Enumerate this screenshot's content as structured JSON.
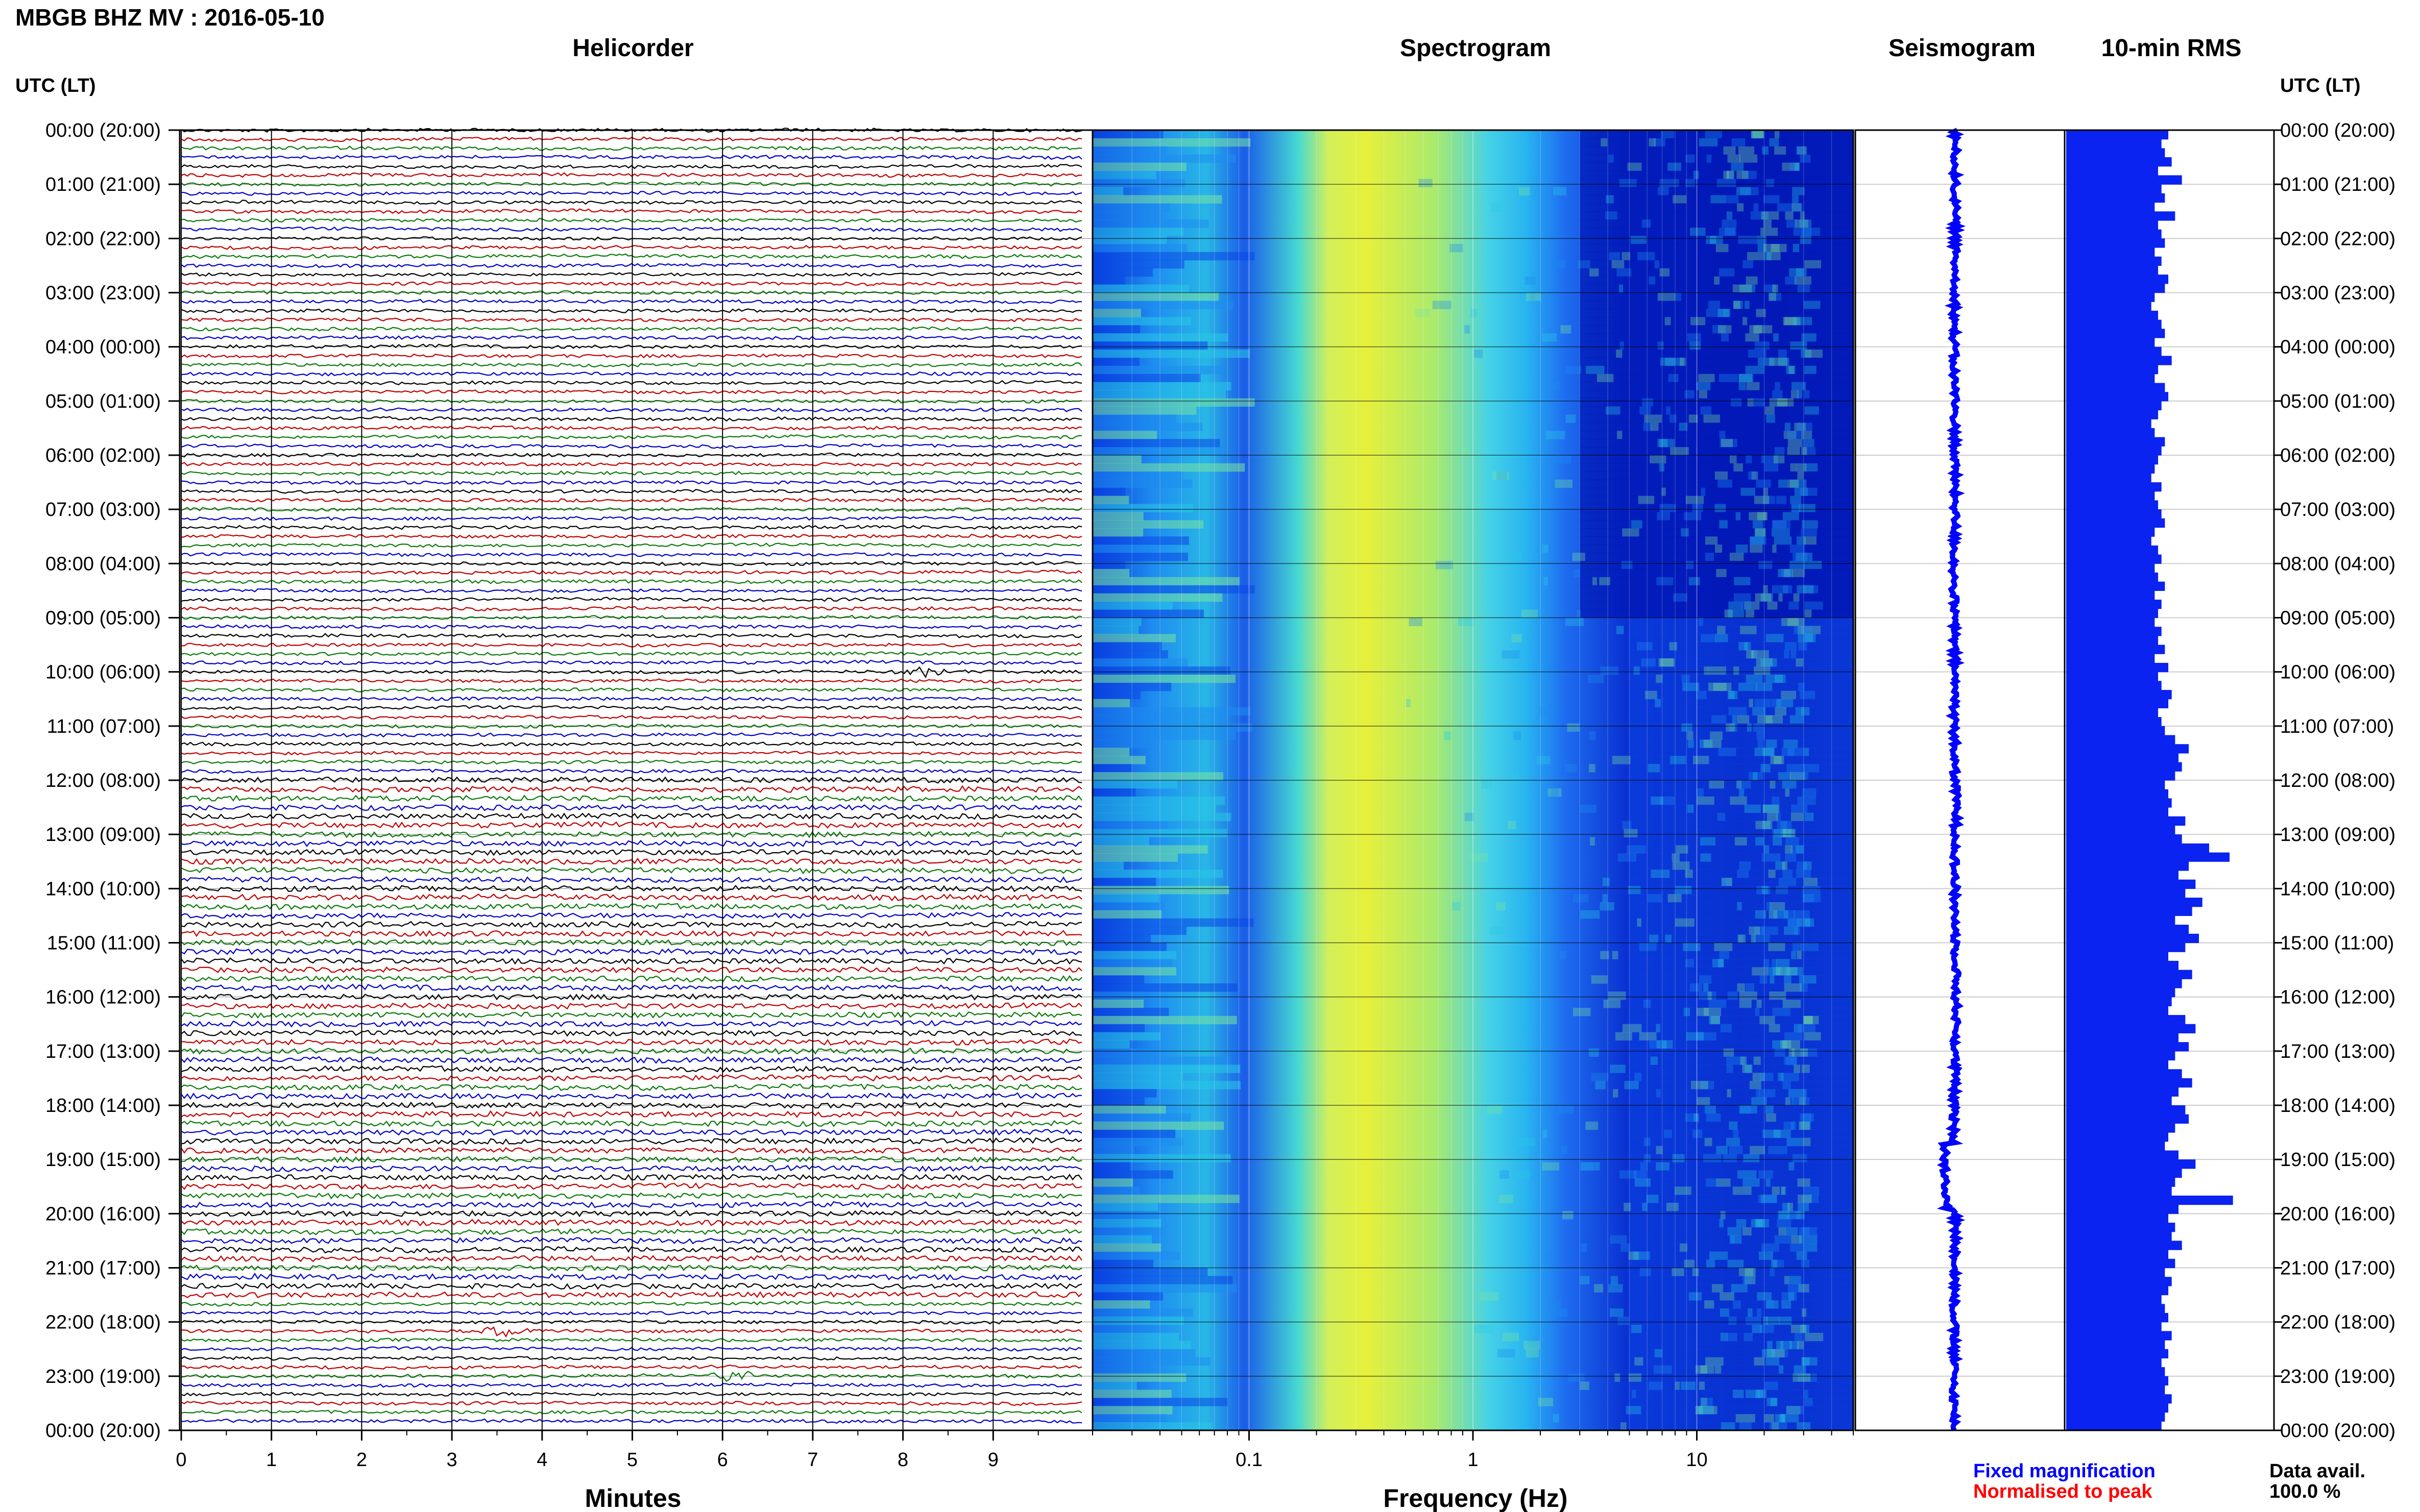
{
  "figure_title": "MBGB BHZ MV : 2016-05-10",
  "chart_data": [
    {
      "type": "line",
      "title": "Helicorder",
      "xlabel": "Minutes",
      "x_ticks": [
        "0",
        "1",
        "2",
        "3",
        "4",
        "5",
        "6",
        "7",
        "8",
        "9"
      ],
      "xlim": [
        0,
        10
      ],
      "lines_per_hour": 6,
      "trace_colors": [
        "#000000",
        "#c00000",
        "#0a7a0a",
        "#0000c8"
      ],
      "events": [
        {
          "time_label": "10:00 (06:00)",
          "trace_index": 60,
          "minute": 8.2,
          "color": "#c00000"
        },
        {
          "time_label": "22:00 (18:00)",
          "trace_index": 133,
          "minute": 3.6,
          "color": "#c00000"
        },
        {
          "time_label": "22:00 (18:00)",
          "trace_index": 138,
          "minute": 6.1,
          "color": "#000000"
        }
      ]
    },
    {
      "type": "heatmap",
      "title": "Spectrogram",
      "xlabel": "Frequency (Hz)",
      "x_scale": "log",
      "x_ticks": [
        "0.1",
        "1",
        "10"
      ],
      "xlim": [
        0.02,
        50
      ],
      "colormap": [
        "#0015b4",
        "#0a46e6",
        "#1e8cf0",
        "#28c8e6",
        "#78e6a0",
        "#d2f05a",
        "#f0f028"
      ]
    },
    {
      "type": "line",
      "title": "Seismogram",
      "color": "#0000ff"
    },
    {
      "type": "bar",
      "title": "10-min RMS",
      "color": "#0a23f0",
      "values": [
        3.0,
        2.8,
        2.9,
        3.1,
        2.7,
        3.4,
        2.8,
        2.9,
        2.6,
        3.2,
        2.7,
        2.8,
        2.9,
        2.6,
        2.8,
        2.7,
        3.0,
        2.9,
        2.6,
        2.5,
        2.7,
        2.8,
        2.9,
        2.6,
        2.8,
        3.1,
        2.7,
        2.6,
        2.9,
        3.0,
        2.8,
        2.7,
        2.5,
        2.6,
        2.9,
        2.8,
        2.7,
        2.6,
        2.5,
        2.8,
        2.6,
        2.7,
        2.8,
        2.9,
        2.6,
        2.5,
        2.7,
        2.8,
        2.6,
        2.7,
        2.9,
        2.6,
        2.8,
        2.7,
        2.6,
        2.8,
        2.7,
        2.9,
        2.6,
        3.0,
        2.7,
        2.8,
        3.1,
        3.0,
        2.7,
        2.8,
        2.9,
        3.2,
        3.6,
        3.3,
        3.4,
        3.2,
        2.9,
        3.0,
        3.1,
        3.0,
        3.5,
        3.2,
        3.4,
        4.2,
        4.8,
        3.6,
        3.3,
        3.8,
        3.5,
        4.0,
        3.7,
        3.2,
        3.6,
        3.9,
        3.5,
        3.0,
        3.3,
        3.7,
        3.4,
        3.2,
        3.1,
        3.0,
        3.5,
        3.8,
        3.3,
        3.6,
        3.2,
        3.0,
        3.4,
        3.7,
        3.3,
        3.1,
        3.5,
        3.6,
        3.2,
        3.0,
        2.9,
        3.3,
        3.8,
        3.4,
        3.2,
        3.1,
        4.9,
        3.3,
        3.0,
        3.2,
        3.1,
        3.4,
        3.0,
        3.2,
        2.9,
        3.1,
        3.0,
        2.8,
        2.9,
        3.0,
        2.8,
        3.1,
        2.9,
        3.0,
        2.8,
        2.9,
        3.0,
        2.9,
        3.1,
        3.0,
        2.9,
        2.8
      ]
    }
  ],
  "time_labels": [
    "00:00 (20:00)",
    "01:00 (21:00)",
    "02:00 (22:00)",
    "03:00 (23:00)",
    "04:00 (00:00)",
    "05:00 (01:00)",
    "06:00 (02:00)",
    "07:00 (03:00)",
    "08:00 (04:00)",
    "09:00 (05:00)",
    "10:00 (06:00)",
    "11:00 (07:00)",
    "12:00 (08:00)",
    "13:00 (09:00)",
    "14:00 (10:00)",
    "15:00 (11:00)",
    "16:00 (12:00)",
    "17:00 (13:00)",
    "18:00 (14:00)",
    "19:00 (15:00)",
    "20:00 (16:00)",
    "21:00 (17:00)",
    "22:00 (18:00)",
    "23:00 (19:00)",
    "00:00 (20:00)"
  ],
  "utc_label_left": "UTC (LT)",
  "utc_label_right": "UTC (LT)",
  "legend": {
    "fixed": "Fixed magnification",
    "fixed_color": "#0000ff",
    "normalised": "Normalised to peak",
    "normalised_color": "#ff0000"
  },
  "availability": {
    "label": "Data avail.",
    "value": "100.0 %"
  }
}
